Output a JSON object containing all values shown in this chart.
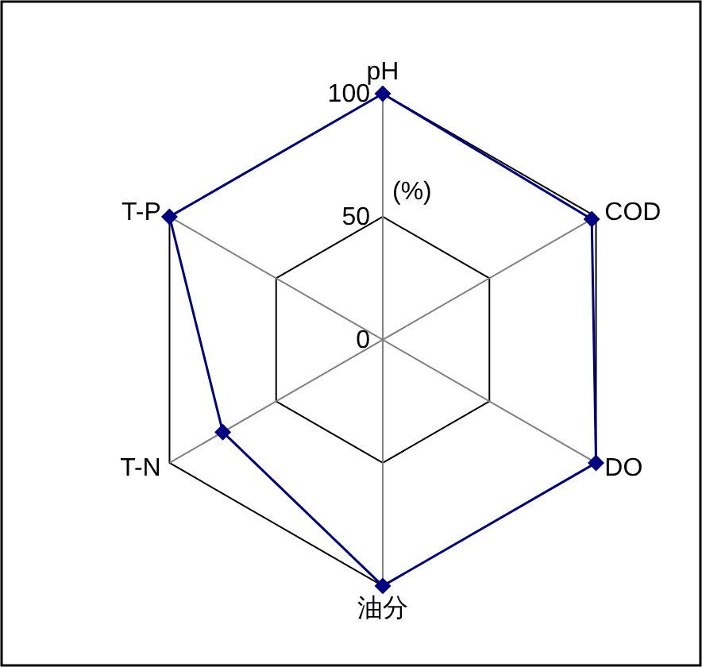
{
  "chart_data": {
    "type": "radar",
    "ylabel": "(%)",
    "categories": [
      "pH",
      "COD",
      "DO",
      "油分",
      "T-N",
      "T-P"
    ],
    "series": [
      {
        "color": "#000080",
        "values": [
          100,
          98,
          100,
          100,
          75,
          100
        ]
      }
    ],
    "ylim": [
      0,
      100
    ],
    "yticks": [
      0,
      50,
      100
    ],
    "grid": true,
    "marker": "diamond",
    "line_style": "solid"
  }
}
